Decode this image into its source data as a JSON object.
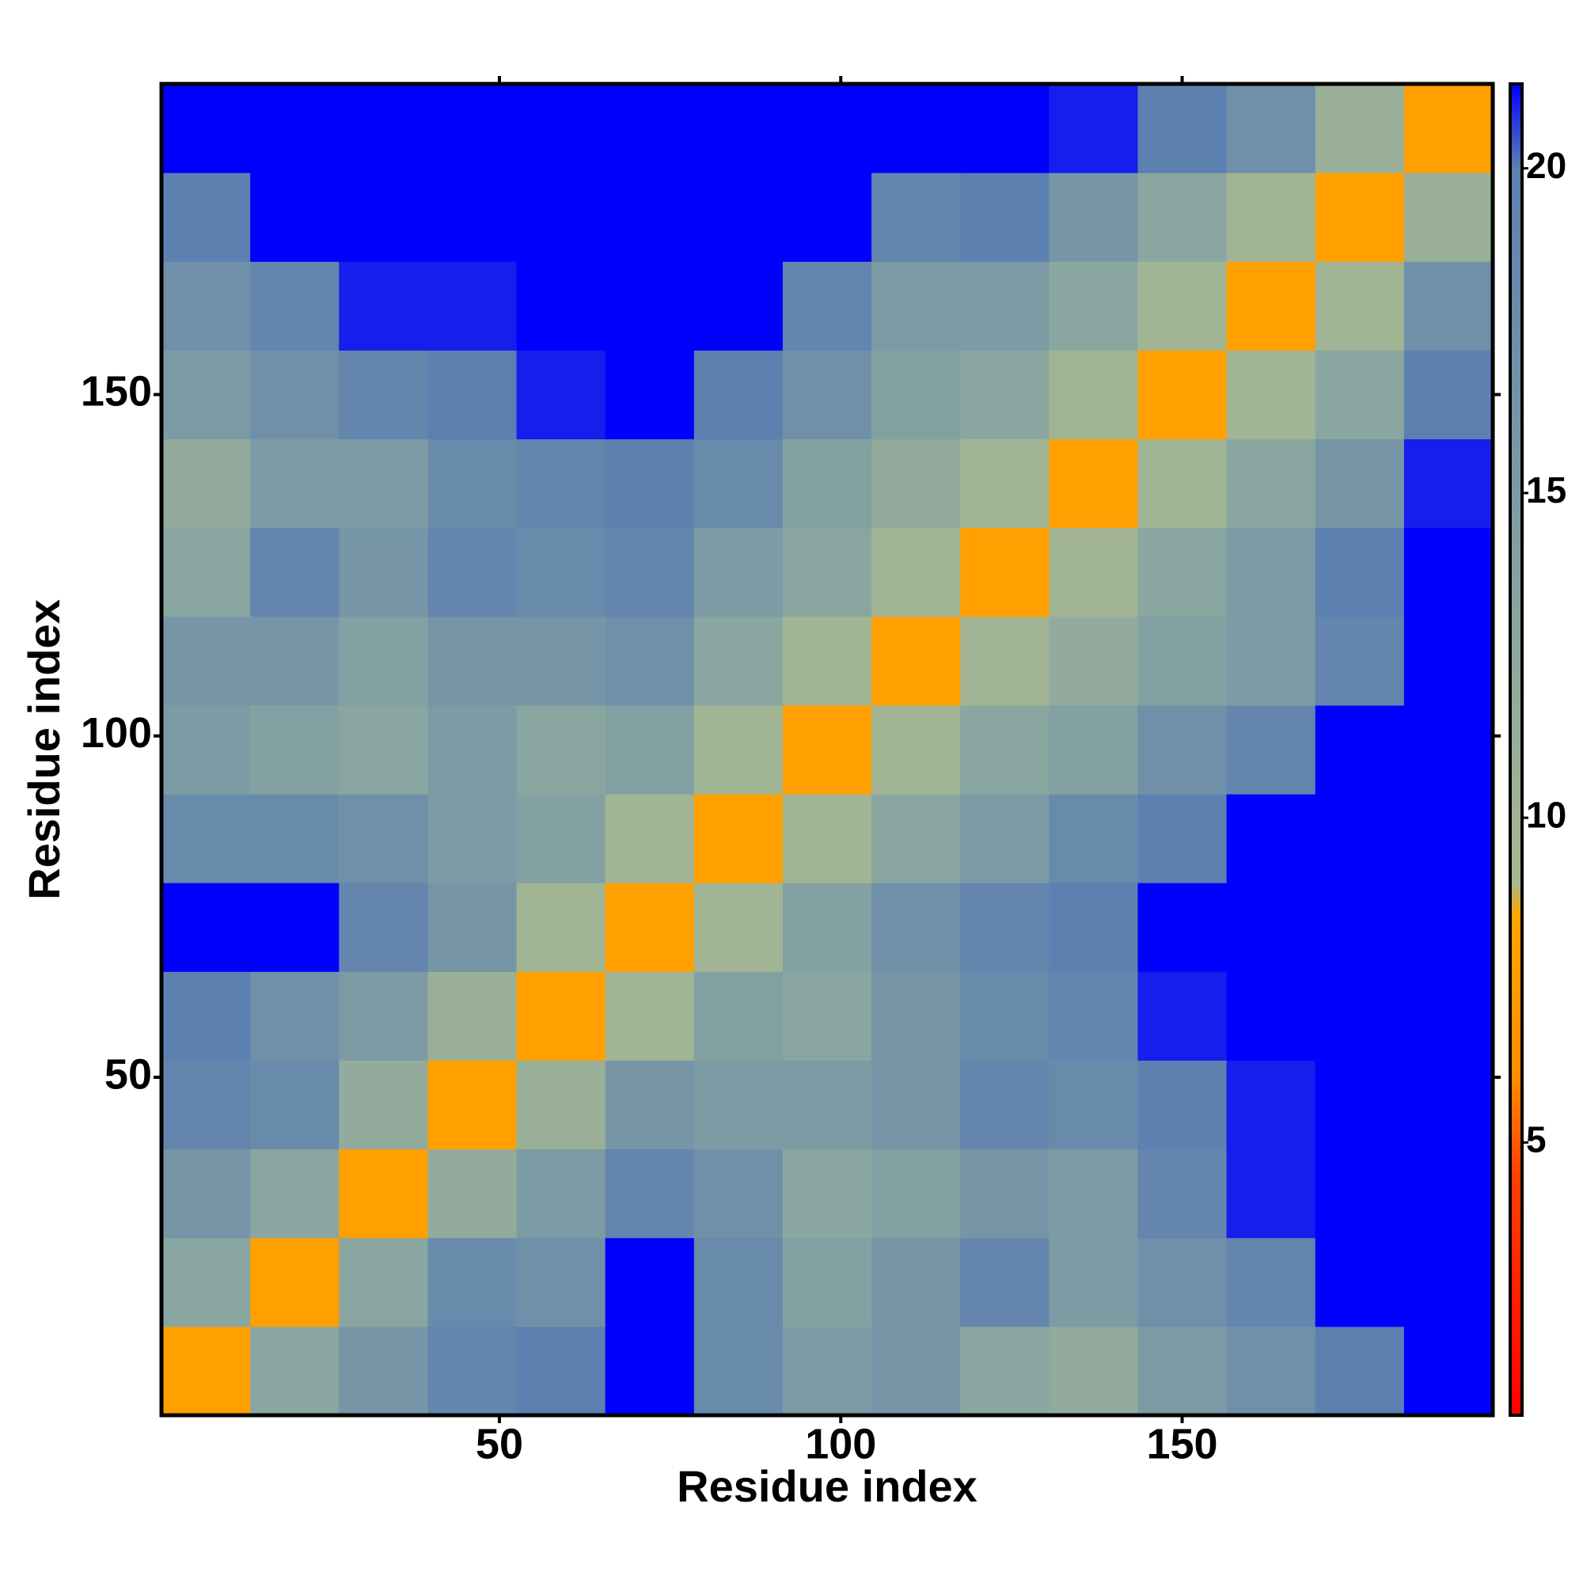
{
  "chart_data": {
    "type": "heatmap",
    "xlabel": "Residue index",
    "ylabel": "Residue index",
    "xlim": [
      0.5,
      195.5
    ],
    "ylim": [
      0.5,
      195.5
    ],
    "xticks": [
      50,
      100,
      150
    ],
    "yticks": [
      50,
      100,
      150
    ],
    "x_edges": [
      0.5,
      13.5,
      26.5,
      39.5,
      52.5,
      65.5,
      78.5,
      91.5,
      104.5,
      117.5,
      130.5,
      143.5,
      156.5,
      169.5,
      182.5,
      195.5
    ],
    "y_edges": [
      0.5,
      13.5,
      26.5,
      39.5,
      52.5,
      65.5,
      78.5,
      91.5,
      104.5,
      117.5,
      130.5,
      143.5,
      156.5,
      169.5,
      182.5,
      195.5
    ],
    "z": [
      [
        8,
        13,
        16,
        19,
        20,
        21.3,
        18,
        15,
        16,
        13,
        12,
        15,
        17,
        20,
        21.3
      ],
      [
        13,
        8,
        13,
        18,
        17,
        21.3,
        18,
        14,
        16,
        19,
        15,
        17,
        19,
        21.3,
        21.3
      ],
      [
        16,
        13,
        8,
        12,
        15,
        19,
        17,
        13,
        14,
        16,
        15,
        19,
        21,
        21.3,
        21.3
      ],
      [
        19,
        18,
        12,
        8,
        11,
        16,
        15,
        15,
        16,
        19,
        18,
        20,
        21,
        21.3,
        21.3
      ],
      [
        20,
        17,
        15,
        11,
        8,
        10,
        14,
        13,
        16,
        18,
        19,
        21,
        21.3,
        21.3,
        21.3
      ],
      [
        21.3,
        21.3,
        19,
        16,
        10,
        8,
        10,
        14,
        17,
        19,
        20,
        21.3,
        21.3,
        21.3,
        21.3
      ],
      [
        18,
        18,
        17,
        15,
        14,
        10,
        8,
        10,
        13,
        15,
        18,
        20,
        21.3,
        21.3,
        21.3
      ],
      [
        15,
        14,
        13,
        15,
        13,
        14,
        10,
        8,
        10,
        13,
        14,
        17,
        19,
        21.3,
        21.3
      ],
      [
        16,
        16,
        14,
        16,
        16,
        17,
        13,
        10,
        8,
        10,
        12,
        14,
        15,
        19,
        21.3
      ],
      [
        13,
        19,
        16,
        19,
        18,
        19,
        15,
        13,
        10,
        8,
        10,
        13,
        15,
        20,
        21.3
      ],
      [
        12,
        15,
        15,
        18,
        19,
        20,
        18,
        14,
        12,
        10,
        8,
        10,
        13,
        16,
        21
      ],
      [
        15,
        17,
        19,
        20,
        21,
        21.3,
        20,
        17,
        14,
        13,
        10,
        8,
        10,
        13,
        20
      ],
      [
        17,
        19,
        21,
        21,
        21.3,
        21.3,
        21.3,
        19,
        15,
        15,
        13,
        10,
        8,
        10,
        17
      ],
      [
        20,
        21.3,
        21.3,
        21.3,
        21.3,
        21.3,
        21.3,
        21.3,
        19,
        20,
        16,
        13,
        10,
        8,
        11
      ],
      [
        21.3,
        21.3,
        21.3,
        21.3,
        21.3,
        21.3,
        21.3,
        21.3,
        21.3,
        21.3,
        21,
        20,
        17,
        11,
        8
      ]
    ],
    "zlim": [
      0.8,
      21.3
    ],
    "zticks": [
      5,
      10,
      15,
      20
    ],
    "colorscale": [
      {
        "value": 0.8,
        "color": "#ff0000"
      },
      {
        "value": 4.5,
        "color": "#ff4000"
      },
      {
        "value": 6,
        "color": "#ff8c00"
      },
      {
        "value": 8.5,
        "color": "#ffa500"
      },
      {
        "value": 9,
        "color": "#a8b890"
      },
      {
        "value": 13,
        "color": "#8aa6a0"
      },
      {
        "value": 20,
        "color": "#5c80b0"
      },
      {
        "value": 21.3,
        "color": "#0000ff"
      }
    ]
  }
}
